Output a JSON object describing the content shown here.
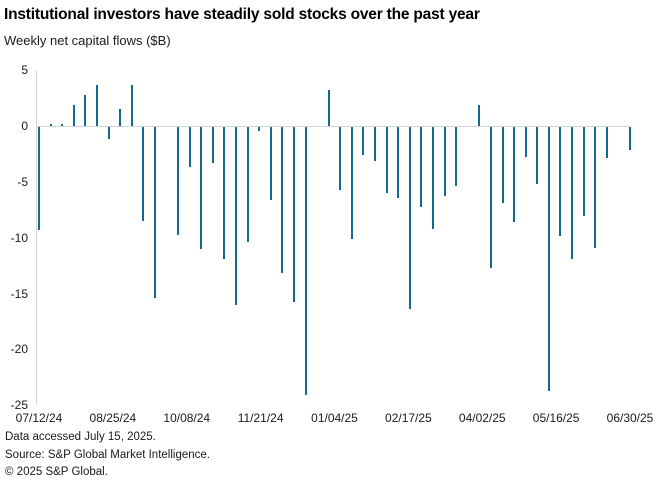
{
  "chart_data": {
    "type": "bar",
    "title": "Institutional investors have steadily sold stocks over the past year",
    "subtitle": "Weekly net capital flows ($B)",
    "series_name": "Weekly net capital flows ($B)",
    "x_tick_labels": [
      "07/12/24",
      "08/25/24",
      "10/08/24",
      "11/21/24",
      "01/04/25",
      "02/17/25",
      "04/02/25",
      "05/16/25",
      "06/30/25"
    ],
    "y_ticks": [
      5,
      0,
      -5,
      -10,
      -15,
      -20,
      -25
    ],
    "ylim": [
      -25,
      5
    ],
    "values": [
      -9.2,
      0.2,
      0.2,
      1.9,
      2.8,
      3.7,
      -1.1,
      1.5,
      3.7,
      -8.4,
      -15.3,
      0,
      -9.7,
      -3.6,
      -10.9,
      -3.2,
      -11.8,
      -15.9,
      -10.3,
      -0.4,
      -6.5,
      -13.1,
      -15.7,
      -24.0,
      0,
      3.2,
      -5.6,
      -10.0,
      -2.5,
      -3.0,
      -5.9,
      -6.4,
      -16.3,
      -7.2,
      -9.1,
      -6.2,
      -5.3,
      0,
      1.9,
      -12.6,
      -6.8,
      -8.5,
      -2.7,
      -5.1,
      -23.6,
      -9.8,
      -11.8,
      -8.0,
      -10.8,
      -2.8,
      0,
      -2.1
    ],
    "grid": "zero baseline and left axis only, no horizontal gridlines",
    "legend_position": "none",
    "bar_color": "#14698c",
    "axis_color": "#d4d4d4"
  },
  "footer": {
    "lines": [
      "Data accessed July 15, 2025.",
      "Source: S&P Global Market Intelligence.",
      "© 2025 S&P Global."
    ]
  }
}
